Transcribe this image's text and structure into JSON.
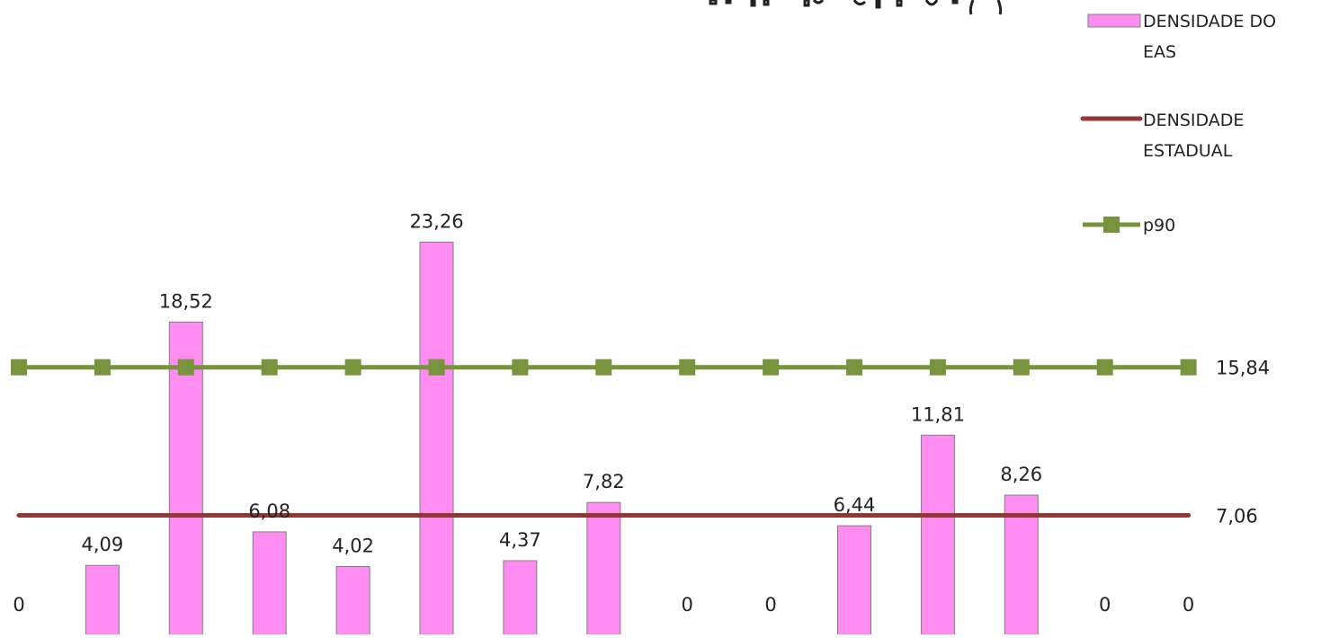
{
  "chart_data": {
    "type": "bar",
    "title": "",
    "xlabel": "",
    "ylabel": "",
    "ylim": [
      0,
      26
    ],
    "grid": false,
    "legend_position": "top-right",
    "series": [
      {
        "name": "DENSIDADE DO EAS",
        "kind": "bar",
        "values": [
          0,
          4.09,
          18.52,
          6.08,
          4.02,
          23.26,
          4.37,
          7.82,
          0,
          0,
          6.44,
          11.81,
          8.26,
          0,
          0
        ],
        "value_labels": [
          "0",
          "4,09",
          "18,52",
          "6,08",
          "4,02",
          "23,26",
          "4,37",
          "7,82",
          "0",
          "0",
          "6,44",
          "11,81",
          "8,26",
          "0",
          "0"
        ]
      },
      {
        "name": "DENSIDADE ESTADUAL",
        "kind": "line",
        "value": 7.06,
        "value_label": "7,06"
      },
      {
        "name": "p90",
        "kind": "line-markers",
        "value": 15.84,
        "value_label": "15,84"
      }
    ],
    "legend": {
      "entries": [
        {
          "lines": [
            "DENSIDADE DO",
            "EAS"
          ]
        },
        {
          "lines": [
            "DENSIDADE",
            "ESTADUAL"
          ]
        },
        {
          "lines": [
            "p90"
          ]
        }
      ]
    },
    "colors": {
      "bar_fill": "#FF8CF0",
      "bar_stroke": "#7F7F7F",
      "estadual_line": "#943634",
      "p90_line": "#77933C",
      "p90_marker": "#77933C"
    }
  }
}
